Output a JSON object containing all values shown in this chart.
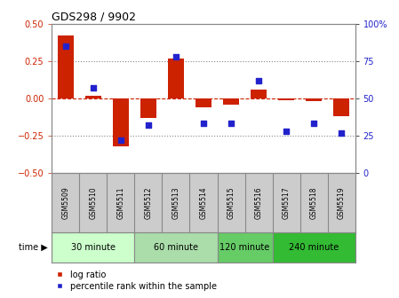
{
  "title": "GDS298 / 9902",
  "samples": [
    "GSM5509",
    "GSM5510",
    "GSM5511",
    "GSM5512",
    "GSM5513",
    "GSM5514",
    "GSM5515",
    "GSM5516",
    "GSM5517",
    "GSM5518",
    "GSM5519"
  ],
  "log_ratio": [
    0.42,
    0.02,
    -0.32,
    -0.13,
    0.27,
    -0.06,
    -0.04,
    0.06,
    -0.01,
    -0.02,
    -0.12
  ],
  "percentile": [
    85,
    57,
    22,
    32,
    78,
    33,
    33,
    62,
    28,
    33,
    27
  ],
  "bar_color": "#cc2200",
  "dot_color": "#2222cc",
  "ylim_left": [
    -0.5,
    0.5
  ],
  "ylim_right": [
    0,
    100
  ],
  "yticks_left": [
    -0.5,
    -0.25,
    0.0,
    0.25,
    0.5
  ],
  "yticks_right": [
    0,
    25,
    50,
    75,
    100
  ],
  "hlines_dotted": [
    0.25,
    -0.25
  ],
  "hline_dashed": 0.0,
  "time_groups": [
    {
      "label": "30 minute",
      "samples": [
        "GSM5509",
        "GSM5510",
        "GSM5511"
      ],
      "color": "#ccffcc"
    },
    {
      "label": "60 minute",
      "samples": [
        "GSM5512",
        "GSM5513",
        "GSM5514"
      ],
      "color": "#aaddaa"
    },
    {
      "label": "120 minute",
      "samples": [
        "GSM5515",
        "GSM5516"
      ],
      "color": "#66cc66"
    },
    {
      "label": "240 minute",
      "samples": [
        "GSM5517",
        "GSM5518",
        "GSM5519"
      ],
      "color": "#33bb33"
    }
  ],
  "legend_log_ratio": "log ratio",
  "legend_percentile": "percentile rank within the sample",
  "time_label": "time",
  "label_bg": "#cccccc",
  "spine_color": "#888888",
  "background_color": "#ffffff"
}
